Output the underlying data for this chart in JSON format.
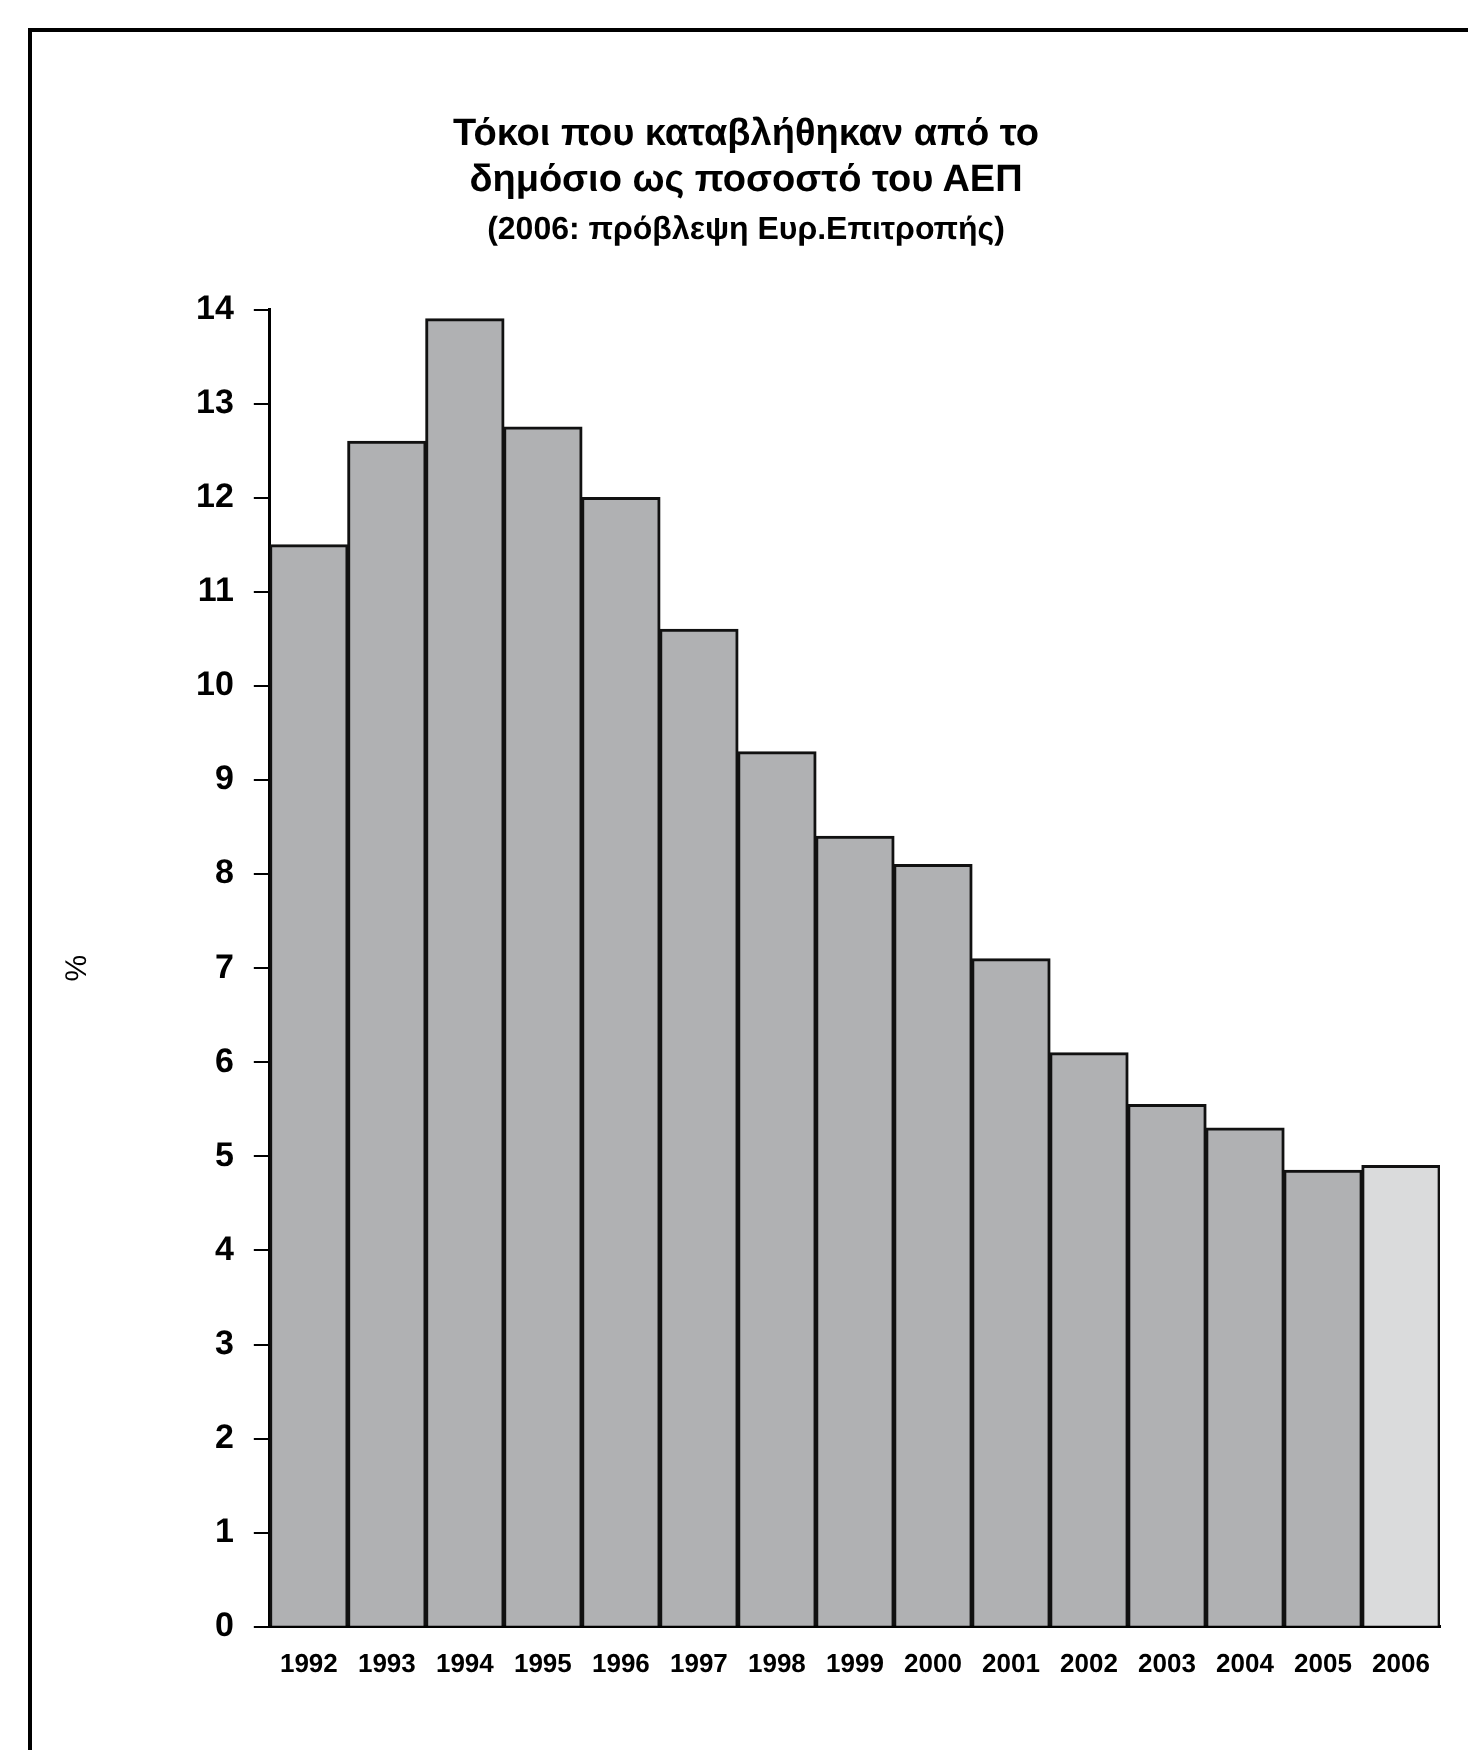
{
  "chart_data": {
    "type": "bar",
    "title": "Τόκοι που καταβλήθηκαν από το δημόσιο ως ποσοστό του ΑΕΠ",
    "subtitle": "(2006: πρόβλεψη Ευρ.Επιτροπής)",
    "ylabel": "%",
    "categories": [
      "1992",
      "1993",
      "1994",
      "1995",
      "1996",
      "1997",
      "1998",
      "1999",
      "2000",
      "2001",
      "2002",
      "2003",
      "2004",
      "2005",
      "2006"
    ],
    "values": [
      11.5,
      12.6,
      13.9,
      12.75,
      12.0,
      10.6,
      9.3,
      8.4,
      8.1,
      7.1,
      6.1,
      5.55,
      5.3,
      4.85,
      4.9
    ],
    "colors": [
      "#b0b1b3",
      "#b0b1b3",
      "#b0b1b3",
      "#b0b1b3",
      "#b0b1b3",
      "#b0b1b3",
      "#b0b1b3",
      "#b0b1b3",
      "#b0b1b3",
      "#b0b1b3",
      "#b0b1b3",
      "#b0b1b3",
      "#b0b1b3",
      "#b0b1b3",
      "#dadbdc"
    ],
    "ylim": [
      0,
      14
    ],
    "yticks": [
      0,
      1,
      2,
      3,
      4,
      5,
      6,
      7,
      8,
      9,
      10,
      11,
      12,
      13,
      14
    ],
    "grid": false,
    "legend": false
  }
}
